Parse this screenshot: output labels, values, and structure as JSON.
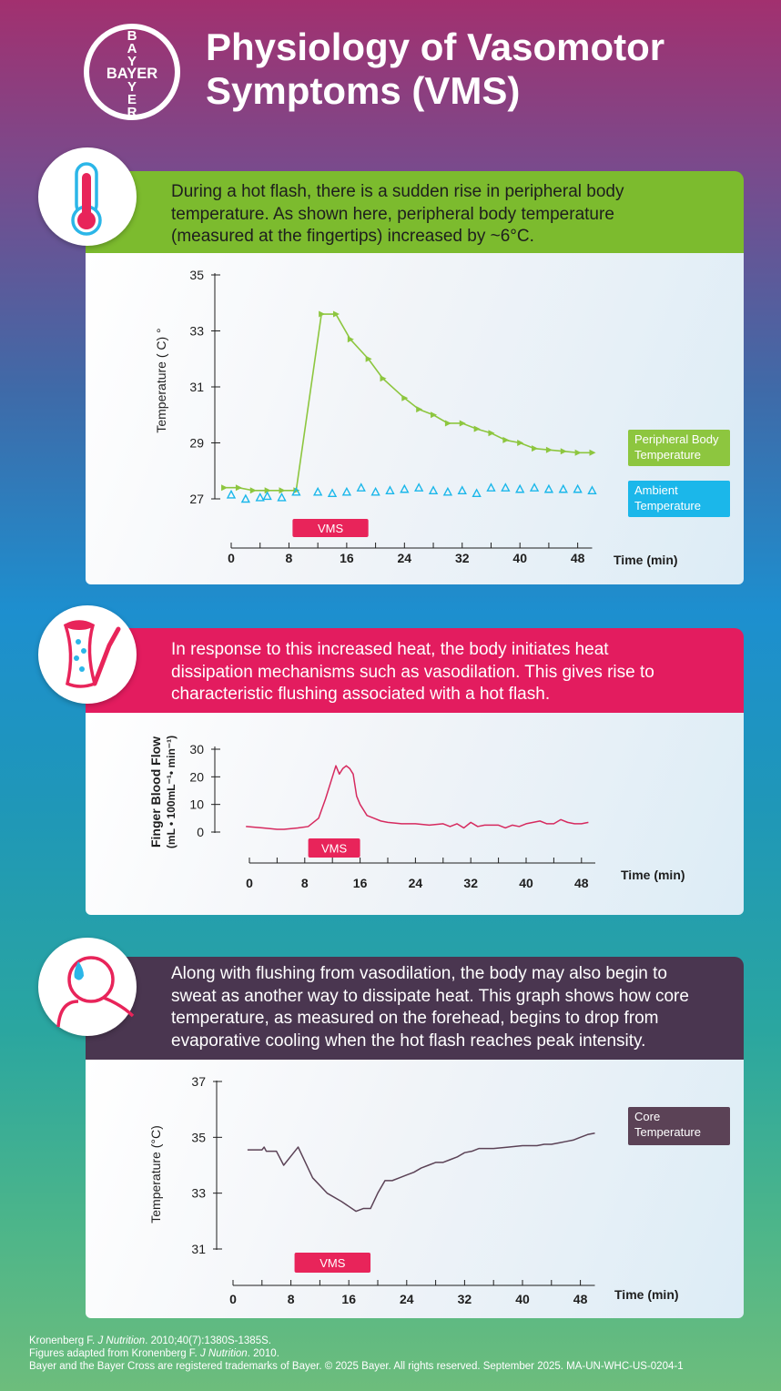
{
  "header": {
    "logo_text": "BAYER",
    "title_line1": "Physiology of Vasomotor",
    "title_line2": "Symptoms (VMS)"
  },
  "sections": [
    {
      "icon": "thermometer-icon",
      "color": "#7cbb2e",
      "lines": [
        "During a hot flash, there is a sudden rise in peripheral body",
        "temperature. As shown here, peripheral body temperature",
        "(measured at the fingertips) increased by ~6°C."
      ]
    },
    {
      "icon": "blood-vessel-icon",
      "color": "#e31c5f",
      "lines": [
        "In response to this increased heat, the body initiates heat",
        "dissipation mechanisms such as vasodilation. This gives rise to",
        "characteristic flushing associated with a hot flash."
      ]
    },
    {
      "icon": "sweating-person-icon",
      "color": "#4a3650",
      "lines": [
        "Along with flushing from vasodilation, the body may also begin to",
        "sweat as another way to dissipate heat. This graph shows how core",
        "temperature, as measured on the forehead, begins to drop from",
        "evaporative cooling when the hot flash reaches peak intensity."
      ]
    }
  ],
  "chart_data": [
    {
      "type": "line",
      "ylabel": "Temperature ( C) °",
      "xlabel": "Time (min)",
      "xlim": [
        0,
        50
      ],
      "ylim": [
        27,
        35
      ],
      "xticks": [
        "0",
        "8",
        "16",
        "24",
        "32",
        "40",
        "48"
      ],
      "yticks": [
        "27",
        "29",
        "31",
        "33",
        "35"
      ],
      "vms_label": "VMS",
      "vms_range": [
        8.5,
        19
      ],
      "series": [
        {
          "name": "Peripheral Body Temperature",
          "legend_lines": [
            "Peripheral Body",
            "Temperature"
          ],
          "color": "#8dc63f",
          "marker": "triangle-right",
          "x": [
            -1,
            1,
            3,
            5,
            7,
            9,
            12.5,
            14.5,
            16.5,
            19,
            21,
            24,
            26,
            28,
            30,
            32,
            34,
            36,
            38,
            40,
            42,
            44,
            46,
            48,
            50
          ],
          "y": [
            27.4,
            27.4,
            27.3,
            27.3,
            27.3,
            27.3,
            33.6,
            33.6,
            32.7,
            32.0,
            31.3,
            30.6,
            30.2,
            30.0,
            29.7,
            29.7,
            29.5,
            29.35,
            29.1,
            29.0,
            28.8,
            28.75,
            28.7,
            28.65,
            28.65
          ]
        },
        {
          "name": "Ambient Temperature",
          "legend_lines": [
            "Ambient",
            "Temperature"
          ],
          "color": "#1bb7ea",
          "marker": "triangle-open",
          "x": [
            0,
            2,
            4,
            5,
            7,
            9,
            12,
            14,
            16,
            18,
            20,
            22,
            24,
            26,
            28,
            30,
            32,
            34,
            36,
            38,
            40,
            42,
            44,
            46,
            48,
            50
          ],
          "y": [
            27.15,
            27.0,
            27.05,
            27.1,
            27.05,
            27.25,
            27.25,
            27.2,
            27.25,
            27.4,
            27.25,
            27.3,
            27.35,
            27.4,
            27.3,
            27.25,
            27.3,
            27.2,
            27.4,
            27.4,
            27.35,
            27.4,
            27.35,
            27.35,
            27.35,
            27.3
          ]
        }
      ]
    },
    {
      "type": "line",
      "ylabel": "Finger Blood Flow",
      "ylabel2": "(mL • 100mL⁻¹• min⁻¹)",
      "xlabel": "Time (min)",
      "xlim": [
        0,
        50
      ],
      "ylim": [
        0,
        30
      ],
      "xticks": [
        "0",
        "8",
        "16",
        "24",
        "32",
        "40",
        "48"
      ],
      "yticks": [
        "0",
        "10",
        "20",
        "30"
      ],
      "vms_label": "VMS",
      "vms_range": [
        8.5,
        16
      ],
      "series": [
        {
          "name": "Finger Blood Flow",
          "color": "#d62a5f",
          "x": [
            -0.5,
            2,
            4,
            5,
            7,
            8.5,
            10,
            11,
            12,
            12.5,
            13,
            13.5,
            14,
            14.5,
            15,
            15.5,
            16,
            17,
            18,
            19,
            20,
            22,
            24,
            26,
            28,
            29,
            30,
            31,
            32,
            33,
            34,
            36,
            37,
            38,
            39,
            40,
            41,
            42,
            43,
            44,
            45,
            46,
            47,
            48,
            49
          ],
          "y": [
            2,
            1.5,
            1,
            1,
            1.5,
            2,
            5,
            12,
            20,
            24,
            21,
            23,
            24,
            23,
            21,
            13,
            10,
            6,
            5,
            4,
            3.5,
            3,
            3,
            2.5,
            3,
            2,
            3,
            1.5,
            3.5,
            2,
            2.5,
            2.5,
            1.5,
            2.5,
            2,
            3,
            3.5,
            4,
            3,
            3,
            4.5,
            3.5,
            3,
            3,
            3.5
          ]
        }
      ]
    },
    {
      "type": "line",
      "ylabel": "Temperature (°C)",
      "xlabel": "Time (min)",
      "xlim": [
        0,
        50
      ],
      "ylim": [
        31,
        37
      ],
      "xticks": [
        "0",
        "8",
        "16",
        "24",
        "32",
        "40",
        "48"
      ],
      "yticks": [
        "31",
        "33",
        "35",
        "37"
      ],
      "vms_label": "VMS",
      "vms_range": [
        8.5,
        19
      ],
      "series": [
        {
          "name": "Core Temperature",
          "legend_lines": [
            "Core",
            "Temperature"
          ],
          "color": "#5b4256",
          "x": [
            2,
            4,
            4.3,
            4.6,
            6,
            7,
            9,
            11,
            13,
            15,
            17,
            18,
            19,
            20,
            21,
            22,
            23,
            24,
            25,
            26,
            27,
            28,
            29,
            30,
            31,
            32,
            33,
            34,
            36,
            38,
            40,
            41,
            42,
            43,
            44,
            45,
            46,
            47,
            48,
            49,
            50
          ],
          "y": [
            34.55,
            34.55,
            34.65,
            34.5,
            34.5,
            34.0,
            34.65,
            33.55,
            33.0,
            32.7,
            32.35,
            32.45,
            32.45,
            33.0,
            33.45,
            33.45,
            33.55,
            33.65,
            33.75,
            33.9,
            34.0,
            34.1,
            34.1,
            34.2,
            34.3,
            34.45,
            34.5,
            34.6,
            34.6,
            34.65,
            34.7,
            34.7,
            34.7,
            34.75,
            34.75,
            34.8,
            34.85,
            34.9,
            35.0,
            35.1,
            35.15
          ]
        }
      ]
    }
  ],
  "footer": {
    "line1_author": "Kronenberg F. ",
    "line1_journal": "J Nutrition",
    "line1_rest": ". 2010;40(7):1380S-1385S.",
    "line2_pre": "Figures adapted from Kronenberg F. ",
    "line2_journal": "J Nutrition",
    "line2_rest": ". 2010.",
    "line3": "Bayer and the Bayer Cross are registered trademarks of Bayer. © 2025 Bayer. All rights reserved. September 2025. MA-UN-WHC-US-0204-1"
  }
}
